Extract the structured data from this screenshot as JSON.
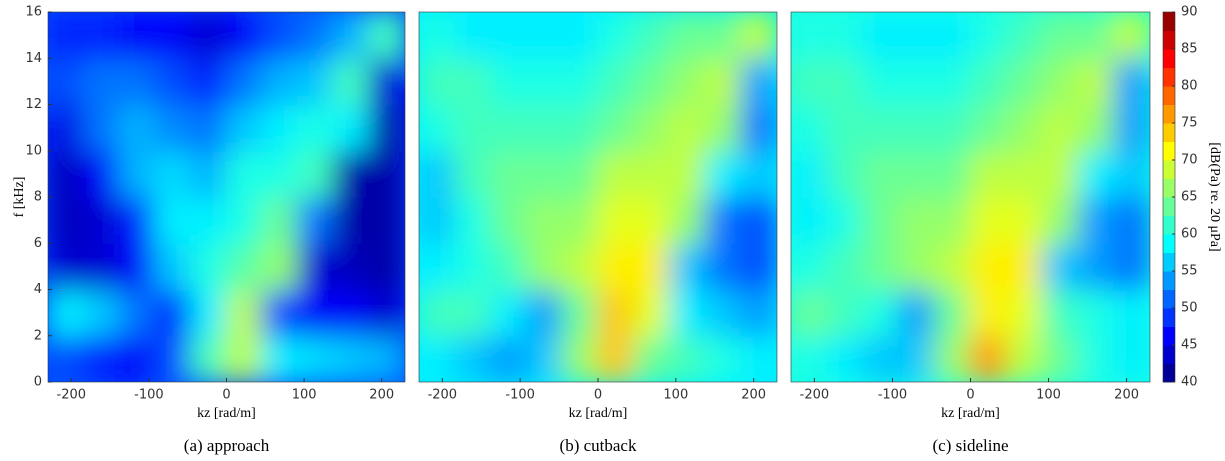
{
  "chart_data": [
    {
      "type": "heatmap",
      "caption": "(a) approach",
      "xlabel": "kz [rad/m]",
      "ylabel": "f [kHz]",
      "xlim": [
        -230,
        230
      ],
      "ylim": [
        0,
        16
      ],
      "xticks": [
        -200,
        -100,
        0,
        100,
        200
      ],
      "yticks": [
        0,
        2,
        4,
        6,
        8,
        10,
        12,
        14,
        16
      ],
      "xbins": [
        -230,
        -184,
        -138,
        -92,
        -46,
        0,
        46,
        92,
        138,
        184,
        230
      ],
      "ybins": [
        0,
        2,
        4,
        6,
        8,
        10,
        12,
        14,
        16
      ],
      "z": [
        [
          50,
          48,
          46,
          50,
          62,
          68,
          58,
          57,
          56,
          55
        ],
        [
          58,
          56,
          52,
          48,
          58,
          68,
          50,
          46,
          46,
          44
        ],
        [
          44,
          44,
          46,
          56,
          60,
          63,
          66,
          44,
          43,
          42
        ],
        [
          43,
          44,
          48,
          58,
          58,
          60,
          64,
          52,
          42,
          42
        ],
        [
          43,
          46,
          55,
          57,
          55,
          60,
          60,
          62,
          42,
          42
        ],
        [
          45,
          52,
          55,
          53,
          52,
          56,
          58,
          60,
          58,
          42
        ],
        [
          50,
          52,
          52,
          50,
          48,
          52,
          55,
          56,
          62,
          44
        ],
        [
          48,
          48,
          46,
          46,
          44,
          46,
          50,
          52,
          55,
          62
        ]
      ]
    },
    {
      "type": "heatmap",
      "caption": "(b) cutback",
      "xlabel": "kz [rad/m]",
      "xlim": [
        -230,
        230
      ],
      "ylim": [
        0,
        16
      ],
      "xticks": [
        -200,
        -100,
        0,
        100,
        200
      ],
      "xbins": [
        -230,
        -184,
        -138,
        -92,
        -46,
        0,
        46,
        92,
        138,
        184,
        230
      ],
      "ybins": [
        0,
        2,
        4,
        6,
        8,
        10,
        12,
        14,
        16
      ],
      "z": [
        [
          58,
          56,
          54,
          56,
          66,
          74,
          64,
          62,
          60,
          58
        ],
        [
          62,
          62,
          58,
          54,
          64,
          74,
          70,
          58,
          56,
          54
        ],
        [
          58,
          60,
          62,
          66,
          68,
          72,
          72,
          56,
          52,
          50
        ],
        [
          56,
          60,
          64,
          66,
          66,
          70,
          70,
          66,
          52,
          50
        ],
        [
          56,
          62,
          64,
          64,
          64,
          68,
          68,
          68,
          58,
          56
        ],
        [
          60,
          62,
          62,
          62,
          62,
          64,
          66,
          68,
          66,
          52
        ],
        [
          62,
          62,
          60,
          60,
          60,
          62,
          64,
          66,
          68,
          54
        ],
        [
          60,
          58,
          58,
          58,
          58,
          60,
          62,
          64,
          64,
          68
        ]
      ]
    },
    {
      "type": "heatmap",
      "caption": "(c) sideline",
      "xlabel": "kz [rad/m]",
      "xlim": [
        -230,
        230
      ],
      "ylim": [
        0,
        16
      ],
      "xticks": [
        -200,
        -100,
        0,
        100,
        200
      ],
      "xbins": [
        -230,
        -184,
        -138,
        -92,
        -46,
        0,
        46,
        92,
        138,
        184,
        230
      ],
      "ybins": [
        0,
        2,
        4,
        6,
        8,
        10,
        12,
        14,
        16
      ],
      "z": [
        [
          60,
          58,
          56,
          56,
          66,
          76,
          68,
          64,
          60,
          58
        ],
        [
          64,
          62,
          60,
          54,
          64,
          72,
          70,
          62,
          60,
          58
        ],
        [
          60,
          62,
          64,
          66,
          68,
          72,
          72,
          56,
          54,
          52
        ],
        [
          58,
          60,
          64,
          66,
          66,
          70,
          70,
          66,
          54,
          52
        ],
        [
          58,
          62,
          64,
          64,
          64,
          68,
          68,
          68,
          58,
          56
        ],
        [
          60,
          62,
          62,
          62,
          62,
          64,
          66,
          68,
          66,
          54
        ],
        [
          62,
          62,
          60,
          60,
          60,
          62,
          64,
          66,
          68,
          54
        ],
        [
          60,
          60,
          58,
          58,
          58,
          60,
          62,
          64,
          64,
          68
        ]
      ]
    }
  ],
  "colorbar": {
    "label": "[dB(Pa) re. 20 μPa]",
    "lim": [
      40,
      90
    ],
    "ticks": [
      40,
      45,
      50,
      55,
      60,
      65,
      70,
      75,
      80,
      85,
      90
    ],
    "colormap": "jet"
  }
}
